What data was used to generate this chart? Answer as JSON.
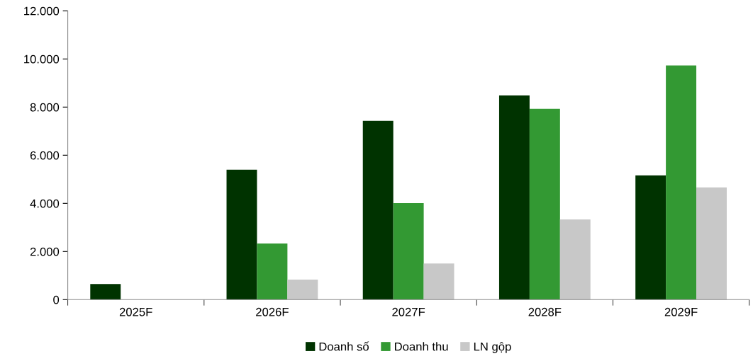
{
  "chart_data": {
    "type": "bar",
    "categories": [
      "2025F",
      "2026F",
      "2027F",
      "2028F",
      "2029F"
    ],
    "series": [
      {
        "name": "Doanh số",
        "color": "#003300",
        "values": [
          650,
          5400,
          7430,
          8490,
          5160
        ]
      },
      {
        "name": "Doanh thu",
        "color": "#339933",
        "values": [
          null,
          2330,
          4010,
          7930,
          9730
        ]
      },
      {
        "name": "LN gộp",
        "color": "#c8c8c8",
        "values": [
          null,
          830,
          1500,
          3330,
          4660
        ]
      }
    ],
    "ylim": [
      0,
      12000
    ],
    "yticks": [
      {
        "value": 0,
        "label": "0"
      },
      {
        "value": 2000,
        "label": "2.000"
      },
      {
        "value": 4000,
        "label": "4.000"
      },
      {
        "value": 6000,
        "label": "6.000"
      },
      {
        "value": 8000,
        "label": "8.000"
      },
      {
        "value": 10000,
        "label": "10.000"
      },
      {
        "value": 12000,
        "label": "12.000"
      }
    ],
    "grid": false,
    "legend": "bottom"
  }
}
